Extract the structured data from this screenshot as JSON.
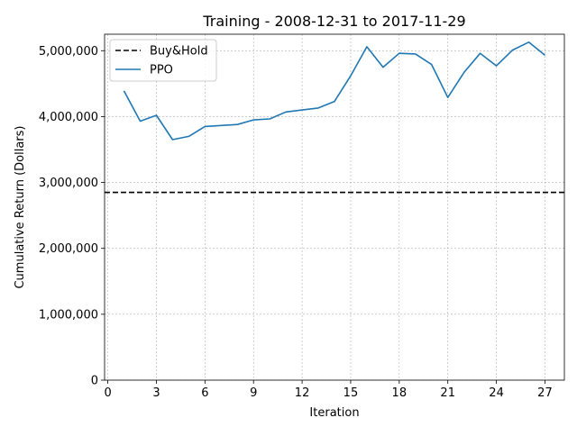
{
  "chart_data": {
    "type": "line",
    "title": "Training - 2008-12-31 to 2017-11-29",
    "xlabel": "Iteration",
    "ylabel": "Cumulative Return (Dollars)",
    "xlim": [
      -0.2,
      28.2
    ],
    "ylim": [
      0,
      5250000
    ],
    "x_ticks": [
      0,
      3,
      6,
      9,
      12,
      15,
      18,
      21,
      24,
      27
    ],
    "x_tick_labels": [
      "0",
      "3",
      "6",
      "9",
      "12",
      "15",
      "18",
      "21",
      "24",
      "27"
    ],
    "y_ticks": [
      0,
      1000000,
      2000000,
      3000000,
      4000000,
      5000000
    ],
    "y_tick_labels": [
      "0",
      "1,000,000",
      "2,000,000",
      "3,000,000",
      "4,000,000",
      "5,000,000"
    ],
    "grid": true,
    "legend_position": "top-left",
    "series": [
      {
        "name": "Buy&Hold",
        "style": "dashed",
        "color": "#000000",
        "kind": "hline",
        "y": 2850000
      },
      {
        "name": "PPO",
        "style": "solid",
        "color": "#1f77b4",
        "kind": "line",
        "x": [
          1,
          2,
          3,
          4,
          5,
          6,
          7,
          8,
          9,
          10,
          11,
          12,
          13,
          14,
          15,
          16,
          17,
          18,
          19,
          20,
          21,
          22,
          23,
          24,
          25,
          26,
          27
        ],
        "y": [
          4390000,
          3930000,
          4020000,
          3650000,
          3700000,
          3850000,
          3865000,
          3880000,
          3950000,
          3965000,
          4070000,
          4100000,
          4130000,
          4230000,
          4620000,
          5060000,
          4750000,
          4960000,
          4950000,
          4790000,
          4290000,
          4670000,
          4960000,
          4770000,
          5010000,
          5130000,
          4930000
        ]
      }
    ]
  }
}
